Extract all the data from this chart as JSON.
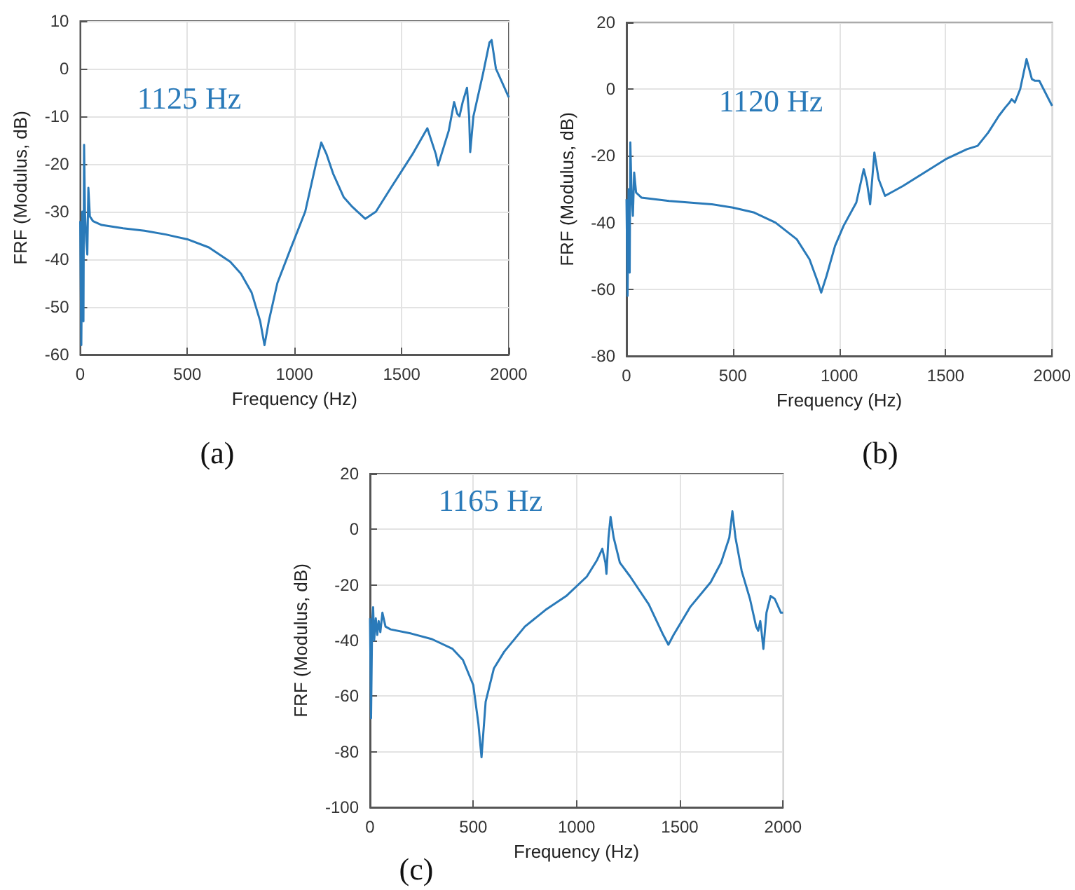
{
  "chart_data": [
    {
      "type": "line",
      "xlabel": "Frequency (Hz)",
      "ylabel": "FRF (Modulus, dB)",
      "annotations": [
        "1125 Hz",
        "(a)"
      ],
      "xlim": [
        0,
        2000
      ],
      "xticks": [
        0,
        500,
        1000,
        1500,
        2000
      ],
      "ylim": [
        -60,
        10
      ],
      "yticks": [
        -60,
        -50,
        -40,
        -30,
        -20,
        -10,
        0,
        10
      ],
      "grid": true,
      "series": [
        {
          "color": "#2a7ab9",
          "x": [
            0,
            5,
            10,
            15,
            18,
            22,
            28,
            33,
            38,
            45,
            60,
            100,
            200,
            300,
            400,
            500,
            600,
            700,
            750,
            800,
            840,
            860,
            880,
            920,
            980,
            1050,
            1100,
            1125,
            1150,
            1180,
            1230,
            1270,
            1330,
            1380,
            1450,
            1550,
            1620,
            1660,
            1670,
            1720,
            1745,
            1760,
            1770,
            1785,
            1805,
            1815,
            1820,
            1835,
            1880,
            1910,
            1920,
            1940,
            1970,
            2000
          ],
          "values": [
            -32,
            -58,
            -30,
            -53,
            -16,
            -30,
            -36,
            -39,
            -25,
            -31,
            -32,
            -32.8,
            -33.5,
            -34,
            -34.8,
            -35.8,
            -37.5,
            -40.5,
            -43,
            -47,
            -53,
            -58,
            -53,
            -45,
            -38,
            -30,
            -20,
            -15.5,
            -18,
            -22,
            -27,
            -29,
            -31.5,
            -30,
            -25,
            -18,
            -12.5,
            -18,
            -20.3,
            -13,
            -7,
            -9.5,
            -10,
            -7,
            -4,
            -10,
            -17.5,
            -10,
            -1,
            5.5,
            6,
            0,
            -3,
            -6
          ]
        }
      ]
    },
    {
      "type": "line",
      "xlabel": "Frequency (Hz)",
      "ylabel": "FRF (Modulus, dB)",
      "annotations": [
        "1120 Hz",
        "(b)"
      ],
      "xlim": [
        0,
        2000
      ],
      "xticks": [
        0,
        500,
        1000,
        1500,
        2000
      ],
      "ylim": [
        -80,
        20
      ],
      "yticks": [
        -80,
        -60,
        -40,
        -20,
        0,
        20
      ],
      "grid": true,
      "series": [
        {
          "color": "#2a7ab9",
          "x": [
            0,
            5,
            10,
            15,
            18,
            24,
            30,
            36,
            45,
            70,
            200,
            400,
            500,
            600,
            700,
            800,
            860,
            900,
            915,
            940,
            980,
            1020,
            1080,
            1115,
            1130,
            1145,
            1165,
            1185,
            1215,
            1300,
            1400,
            1500,
            1600,
            1650,
            1700,
            1750,
            1780,
            1800,
            1810,
            1825,
            1850,
            1880,
            1905,
            1920,
            1940,
            1960,
            2000
          ],
          "values": [
            -33,
            -62,
            -30,
            -55,
            -16,
            -32,
            -38,
            -25,
            -31,
            -32.5,
            -33.5,
            -34.5,
            -35.5,
            -37,
            -40,
            -45,
            -51,
            -58,
            -61,
            -56,
            -47,
            -41,
            -34,
            -24,
            -28,
            -34.5,
            -19,
            -27,
            -32,
            -29,
            -25,
            -21,
            -18,
            -17,
            -13,
            -8,
            -5.5,
            -4,
            -3,
            -4,
            0,
            9,
            3,
            2.5,
            2.5,
            0,
            -5
          ]
        }
      ]
    },
    {
      "type": "line",
      "xlabel": "Frequency (Hz)",
      "ylabel": "FRF (Modulus, dB)",
      "annotations": [
        "1165 Hz",
        "(c)"
      ],
      "xlim": [
        0,
        2000
      ],
      "xticks": [
        0,
        500,
        1000,
        1500,
        2000
      ],
      "ylim": [
        -100,
        20
      ],
      "yticks": [
        -100,
        -80,
        -60,
        -40,
        -20,
        0,
        20
      ],
      "grid": true,
      "series": [
        {
          "color": "#2a7ab9",
          "x": [
            0,
            5,
            10,
            15,
            20,
            28,
            35,
            42,
            50,
            60,
            75,
            100,
            200,
            300,
            400,
            450,
            500,
            525,
            540,
            560,
            600,
            650,
            750,
            850,
            950,
            1050,
            1100,
            1125,
            1140,
            1145,
            1155,
            1165,
            1180,
            1210,
            1260,
            1350,
            1420,
            1445,
            1470,
            1550,
            1650,
            1700,
            1740,
            1755,
            1770,
            1800,
            1840,
            1870,
            1880,
            1890,
            1895,
            1905,
            1920,
            1940,
            1960,
            1990,
            2000
          ],
          "values": [
            -32,
            -68,
            -35,
            -28,
            -40,
            -32,
            -38,
            -33,
            -37,
            -30,
            -35,
            -36,
            -37.5,
            -39.5,
            -43,
            -47,
            -56,
            -70,
            -82,
            -62,
            -50,
            -44,
            -35,
            -29,
            -24,
            -17,
            -11,
            -7,
            -12,
            -16,
            -3,
            4.5,
            -3,
            -12,
            -17,
            -27,
            -38,
            -41.5,
            -38,
            -28,
            -19,
            -12,
            -3,
            6.5,
            -3,
            -15,
            -25,
            -35,
            -36.5,
            -33,
            -36,
            -43,
            -30,
            -24,
            -25,
            -30,
            -30
          ]
        }
      ]
    }
  ]
}
